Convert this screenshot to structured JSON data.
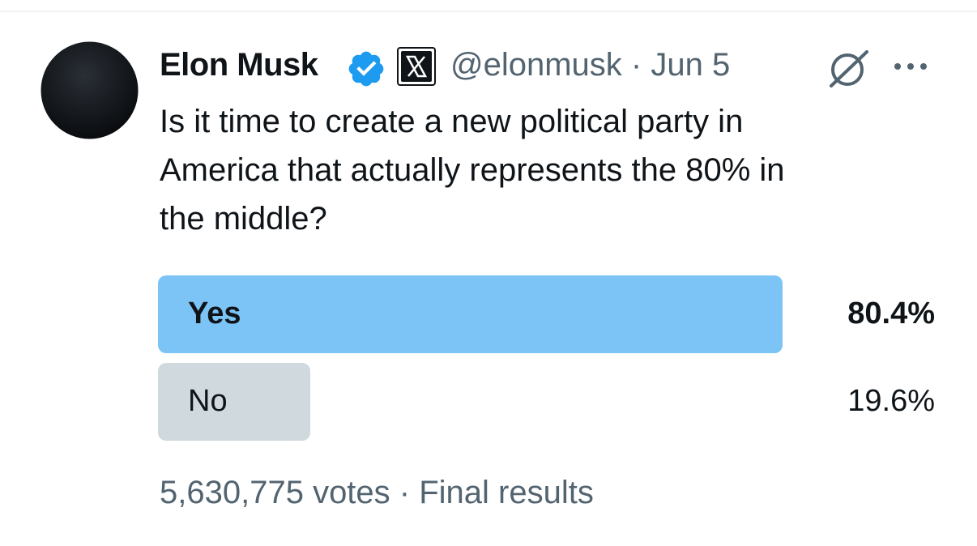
{
  "post": {
    "author": "Elon Musk",
    "byline": "@elonmusk · Jun 5",
    "text_lines": [
      "Is it time to create a new political party in",
      "America that actually represents the 80% in",
      "the middle?"
    ],
    "poll": {
      "options": [
        {
          "label": "Yes",
          "value": 80.4,
          "value_label": "80.4%",
          "color": "#7dc4f6",
          "leading": true
        },
        {
          "label": "No",
          "value": 19.6,
          "value_label": "19.6%",
          "color": "#cfd9de",
          "leading": false
        }
      ],
      "footer": "5,630,775 votes · Final results"
    }
  }
}
